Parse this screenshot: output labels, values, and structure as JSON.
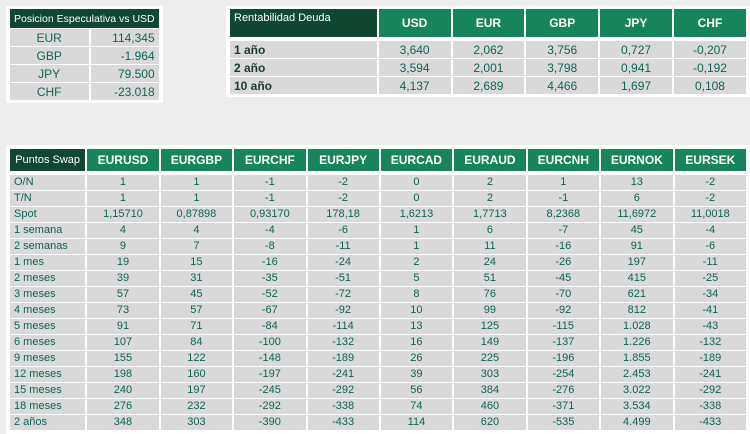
{
  "colors": {
    "page_background": "#ededed",
    "panel_background": "#ffffff",
    "dark_green_header": "#0f4733",
    "green_column_header": "#17855b",
    "cell_gray": "#d9d9d9",
    "value_text_teal": "#0e655a",
    "bold_label_dark": "#1c3a2c"
  },
  "speculative_position": {
    "title": "Posicion Especulativa vs USD",
    "rows": [
      {
        "label": "EUR",
        "value": "114,345"
      },
      {
        "label": "GBP",
        "value": "-1.964"
      },
      {
        "label": "JPY",
        "value": "79.500"
      },
      {
        "label": "CHF",
        "value": "-23.018"
      }
    ]
  },
  "debt_yield": {
    "title": "Rentabilidad Deuda",
    "columns": [
      "USD",
      "EUR",
      "GBP",
      "JPY",
      "CHF"
    ],
    "rows": [
      {
        "label": "1 año",
        "values": [
          "3,640",
          "2,062",
          "3,756",
          "0,727",
          "-0,207"
        ]
      },
      {
        "label": "2 año",
        "values": [
          "3,594",
          "2,001",
          "3,798",
          "0,941",
          "-0,192"
        ]
      },
      {
        "label": "10 año",
        "values": [
          "4,137",
          "2,689",
          "4,466",
          "1,697",
          "0,108"
        ]
      }
    ]
  },
  "swap_points": {
    "title": "Puntos Swap",
    "columns": [
      "EURUSD",
      "EURGBP",
      "EURCHF",
      "EURJPY",
      "EURCAD",
      "EURAUD",
      "EURCNH",
      "EURNOK",
      "EURSEK"
    ],
    "rows": [
      {
        "label": "O/N",
        "values": [
          "1",
          "1",
          "-1",
          "-2",
          "0",
          "2",
          "1",
          "13",
          "-2"
        ]
      },
      {
        "label": "T/N",
        "values": [
          "1",
          "1",
          "-1",
          "-2",
          "0",
          "2",
          "-1",
          "6",
          "-2"
        ]
      },
      {
        "label": "Spot",
        "values": [
          "1,15710",
          "0,87898",
          "0,93170",
          "178,18",
          "1,6213",
          "1,7713",
          "8,2368",
          "11,6972",
          "11,0018"
        ]
      },
      {
        "label": "1 semana",
        "values": [
          "4",
          "4",
          "-4",
          "-6",
          "1",
          "6",
          "-7",
          "45",
          "-4"
        ]
      },
      {
        "label": "2 semanas",
        "values": [
          "9",
          "7",
          "-8",
          "-11",
          "1",
          "11",
          "-16",
          "91",
          "-6"
        ]
      },
      {
        "label": "1 mes",
        "values": [
          "19",
          "15",
          "-16",
          "-24",
          "2",
          "24",
          "-26",
          "197",
          "-11"
        ]
      },
      {
        "label": "2 meses",
        "values": [
          "39",
          "31",
          "-35",
          "-51",
          "5",
          "51",
          "-45",
          "415",
          "-25"
        ]
      },
      {
        "label": "3 meses",
        "values": [
          "57",
          "45",
          "-52",
          "-72",
          "8",
          "76",
          "-70",
          "621",
          "-34"
        ]
      },
      {
        "label": "4 meses",
        "values": [
          "73",
          "57",
          "-67",
          "-92",
          "10",
          "99",
          "-92",
          "812",
          "-41"
        ]
      },
      {
        "label": "5 meses",
        "values": [
          "91",
          "71",
          "-84",
          "-114",
          "13",
          "125",
          "-115",
          "1.028",
          "-43"
        ]
      },
      {
        "label": "6 meses",
        "values": [
          "107",
          "84",
          "-100",
          "-132",
          "16",
          "149",
          "-137",
          "1.226",
          "-132"
        ]
      },
      {
        "label": "9 meses",
        "values": [
          "155",
          "122",
          "-148",
          "-189",
          "26",
          "225",
          "-196",
          "1.855",
          "-189"
        ]
      },
      {
        "label": "12 meses",
        "values": [
          "198",
          "160",
          "-197",
          "-241",
          "39",
          "303",
          "-254",
          "2.453",
          "-241"
        ]
      },
      {
        "label": "15 meses",
        "values": [
          "240",
          "197",
          "-245",
          "-292",
          "56",
          "384",
          "-276",
          "3.022",
          "-292"
        ]
      },
      {
        "label": "18 meses",
        "values": [
          "276",
          "232",
          "-292",
          "-338",
          "74",
          "460",
          "-371",
          "3.534",
          "-338"
        ]
      },
      {
        "label": "2 años",
        "values": [
          "348",
          "303",
          "-390",
          "-433",
          "114",
          "620",
          "-535",
          "4.499",
          "-433"
        ]
      }
    ]
  }
}
